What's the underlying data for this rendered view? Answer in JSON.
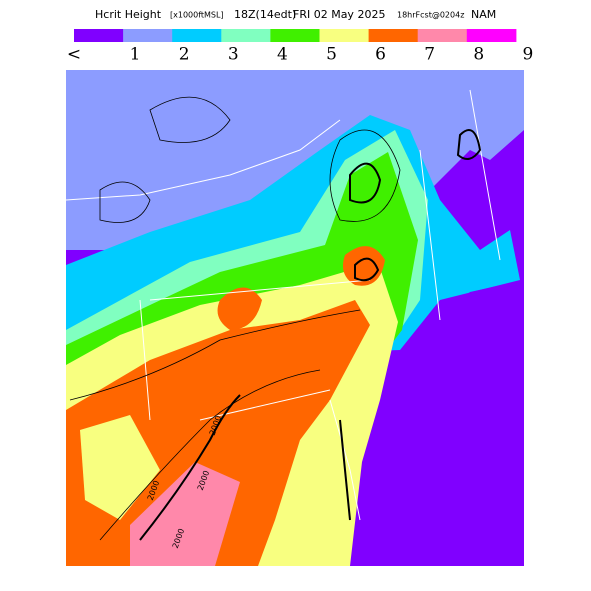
{
  "header": {
    "title_parts": [
      "Hcrit Height",
      "[x1000ftMSL]",
      "18Z(14edt)",
      "FRI 02 May 2025",
      "18hrFcst@0204z",
      "NAM"
    ]
  },
  "colorbar": {
    "colors": [
      "#8000ff",
      "#8c9cff",
      "#00ccff",
      "#80ffc0",
      "#40f000",
      "#f8ff80",
      "#ff6600",
      "#ff88aa",
      "#ff00ff"
    ],
    "labels": [
      "<",
      "1",
      "2",
      "3",
      "4",
      "5",
      "6",
      "7",
      "8",
      "9"
    ]
  },
  "map": {
    "contour_labels": [
      "2000",
      "2000",
      "2000",
      "2000"
    ]
  }
}
